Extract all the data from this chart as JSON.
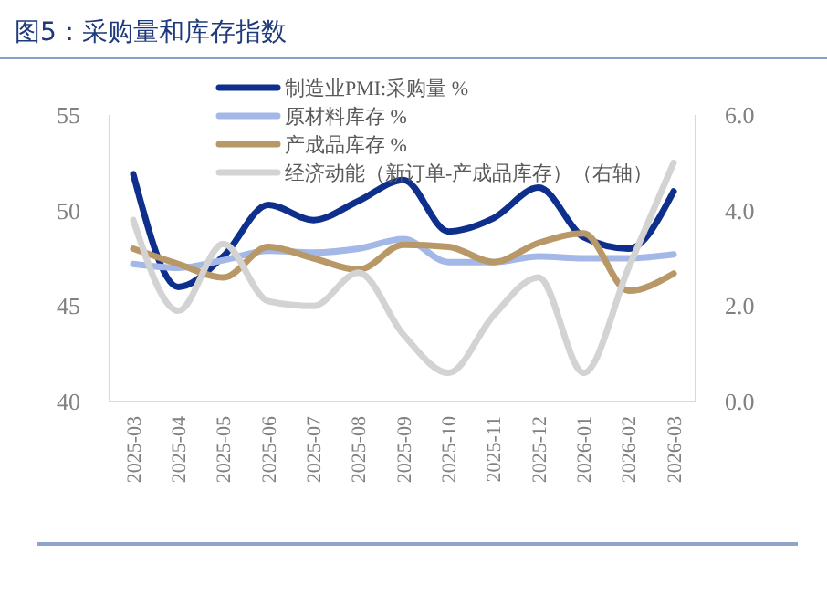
{
  "chart_data": {
    "type": "line",
    "title": "图5：采购量和库存指数",
    "categories": [
      "2025-03",
      "2025-04",
      "2025-05",
      "2025-06",
      "2025-07",
      "2025-08",
      "2025-09",
      "2025-10",
      "2025-11",
      "2025-12",
      "2026-01",
      "2026-02",
      "2026-03"
    ],
    "series": [
      {
        "name": "制造业PMI:采购量 %",
        "color": "#0e2f8c",
        "values": [
          51.9,
          46.0,
          47.6,
          50.3,
          49.5,
          50.5,
          51.6,
          48.9,
          49.6,
          51.2,
          48.6,
          48.0,
          51.0
        ]
      },
      {
        "name": "原材料库存 %",
        "color": "#a4b8e8",
        "values": [
          47.2,
          47.0,
          47.4,
          47.9,
          47.8,
          48.0,
          48.5,
          47.3,
          47.3,
          47.6,
          47.5,
          47.5,
          47.7
        ]
      },
      {
        "name": "产成品库存 %",
        "color": "#b99868",
        "values": [
          48.0,
          47.2,
          46.5,
          48.1,
          47.5,
          46.9,
          48.2,
          48.1,
          47.3,
          48.3,
          48.8,
          45.8,
          46.7
        ]
      },
      {
        "name": "经济动能（新订单-产成品库存）（右轴）",
        "color": "#d3d3d3",
        "axis": "y2",
        "values": [
          3.8,
          1.9,
          3.3,
          2.1,
          2.0,
          2.7,
          1.4,
          0.6,
          1.8,
          2.6,
          0.6,
          2.8,
          5.0
        ]
      }
    ],
    "ylim": [
      40,
      55
    ],
    "yticks": [
      40,
      45,
      50,
      55
    ],
    "y2lim": [
      0,
      6
    ],
    "y2ticks": [
      {
        "value": 0,
        "label": "0.0"
      },
      {
        "value": 2,
        "label": "2.0"
      },
      {
        "value": 4,
        "label": "4.0"
      },
      {
        "value": 6,
        "label": "6.0"
      }
    ],
    "legend": "top",
    "grid": false,
    "marker": "none",
    "line_style": "solid"
  }
}
